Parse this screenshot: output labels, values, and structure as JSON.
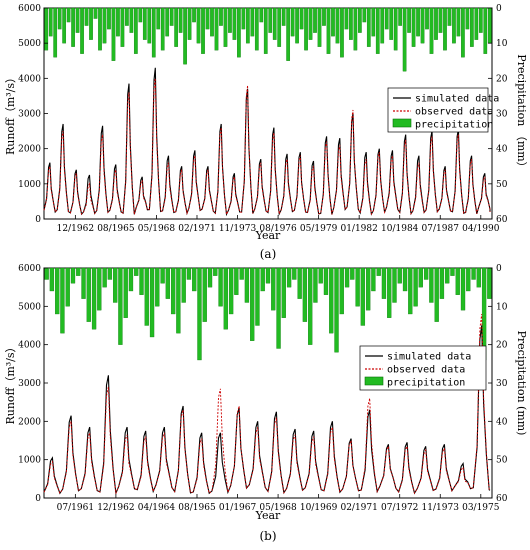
{
  "chart_data": [
    {
      "type": "line",
      "panel_label": "(a)",
      "xlabel": "Year",
      "ylabel": "Runoff（m³/s）",
      "y2label": "Precipitation （mm）",
      "x_ticks": [
        "12/1962",
        "08/1965",
        "05/1968",
        "02/1971",
        "11/1973",
        "08/1976",
        "05/1979",
        "01/1982",
        "10/1984",
        "07/1987",
        "04/1990"
      ],
      "ylim": [
        0,
        6000
      ],
      "y_ticks": [
        0,
        1000,
        2000,
        3000,
        4000,
        5000,
        6000
      ],
      "y2lim": [
        0,
        60
      ],
      "y2_ticks": [
        0,
        10,
        20,
        30,
        40,
        50,
        60
      ],
      "legend": [
        "simulated data",
        "observed data",
        "precipitation"
      ],
      "legend_position": "center-right",
      "x_range_months": [
        0,
        372
      ],
      "series": [
        {
          "name": "simulated data",
          "color": "#000000",
          "style": "solid",
          "peaks": [
            1600,
            2700,
            1400,
            1250,
            2650,
            1550,
            3850,
            1200,
            4300,
            1800,
            1500,
            1950,
            1500,
            2700,
            1300,
            3700,
            1700,
            2600,
            1850,
            1900,
            1650,
            2350,
            2300,
            3000,
            1900,
            2000,
            1950,
            2400,
            1800,
            2500,
            1500,
            2550,
            1800,
            1300
          ]
        },
        {
          "name": "observed data",
          "color": "#cc0000",
          "style": "dashed",
          "peaks": [
            1500,
            2500,
            1300,
            1000,
            2400,
            1400,
            3600,
            1100,
            4000,
            1600,
            1400,
            1800,
            1400,
            2600,
            1200,
            3800,
            1600,
            2450,
            1700,
            1800,
            1500,
            2200,
            2100,
            3100,
            1700,
            1900,
            1800,
            2250,
            1600,
            2350,
            1400,
            2400,
            1700,
            1200
          ]
        },
        {
          "name": "precipitation",
          "color": "#22bb22",
          "style": "bar",
          "values": [
            12,
            8,
            14,
            6,
            10,
            4,
            11,
            7,
            13,
            5,
            9,
            3,
            12,
            10,
            6,
            15,
            8,
            11,
            5,
            7,
            13,
            4,
            9,
            10,
            14,
            6,
            12,
            8,
            5,
            11,
            7,
            16,
            9,
            4,
            10,
            13,
            6,
            8,
            12,
            5,
            11,
            7,
            9,
            14,
            6,
            10,
            8,
            12,
            4,
            13,
            7,
            9,
            11,
            5,
            15,
            8,
            10,
            6,
            12,
            9,
            7,
            11,
            5,
            13,
            8,
            10,
            14,
            6,
            9,
            12,
            7,
            4,
            11,
            8,
            13,
            10,
            6,
            9,
            12,
            5,
            18,
            7,
            11,
            8,
            10,
            6,
            13,
            9,
            7,
            12,
            5,
            10,
            8,
            14,
            6,
            11,
            9,
            7,
            13,
            10
          ]
        }
      ]
    },
    {
      "type": "line",
      "panel_label": "(b)",
      "xlabel": "Year",
      "ylabel": "Runoff（m³/s）",
      "y2label": "Precipitation (mm)",
      "x_ticks": [
        "07/1961",
        "12/1962",
        "04/1964",
        "08/1965",
        "01/1967",
        "05/1968",
        "10/1969",
        "02/1971",
        "07/1972",
        "11/1973",
        "03/1975"
      ],
      "ylim": [
        0,
        6000
      ],
      "y_ticks": [
        0,
        1000,
        2000,
        3000,
        4000,
        5000,
        6000
      ],
      "y2lim": [
        0,
        60
      ],
      "y2_ticks": [
        0,
        10,
        20,
        30,
        40,
        50,
        60
      ],
      "legend": [
        "simulated data",
        "observed data",
        "precipitation"
      ],
      "legend_position": "center-right",
      "x_range_months": [
        0,
        180
      ],
      "series": [
        {
          "name": "simulated data",
          "color": "#000000",
          "style": "solid",
          "peaks": [
            1050,
            2150,
            1850,
            3200,
            1850,
            1750,
            1850,
            2400,
            1700,
            1700,
            2350,
            2000,
            2250,
            1800,
            1750,
            2000,
            1550,
            2300,
            1400,
            1450,
            1350,
            1400,
            900,
            4500
          ]
        },
        {
          "name": "observed data",
          "color": "#cc0000",
          "style": "dashed",
          "peaks": [
            950,
            2000,
            1700,
            2900,
            1650,
            1600,
            1700,
            2300,
            1550,
            2850,
            2400,
            1850,
            2100,
            1650,
            1600,
            1850,
            1500,
            2600,
            1350,
            1350,
            1250,
            1300,
            800,
            4800
          ]
        },
        {
          "name": "precipitation",
          "color": "#22bb22",
          "style": "bar",
          "values": [
            3,
            6,
            12,
            17,
            10,
            4,
            2,
            8,
            14,
            16,
            11,
            5,
            3,
            9,
            20,
            13,
            6,
            2,
            7,
            15,
            18,
            10,
            4,
            8,
            12,
            17,
            9,
            3,
            6,
            24,
            14,
            5,
            2,
            10,
            16,
            12,
            7,
            3,
            9,
            19,
            15,
            6,
            4,
            11,
            21,
            13,
            5,
            3,
            8,
            14,
            20,
            9,
            4,
            7,
            17,
            22,
            12,
            5,
            3,
            10,
            15,
            11,
            6,
            2,
            8,
            13,
            9,
            4,
            6,
            12,
            10,
            5,
            3,
            9,
            14,
            8,
            4,
            2,
            7,
            11,
            6,
            3,
            5,
            24,
            8
          ]
        }
      ]
    }
  ]
}
